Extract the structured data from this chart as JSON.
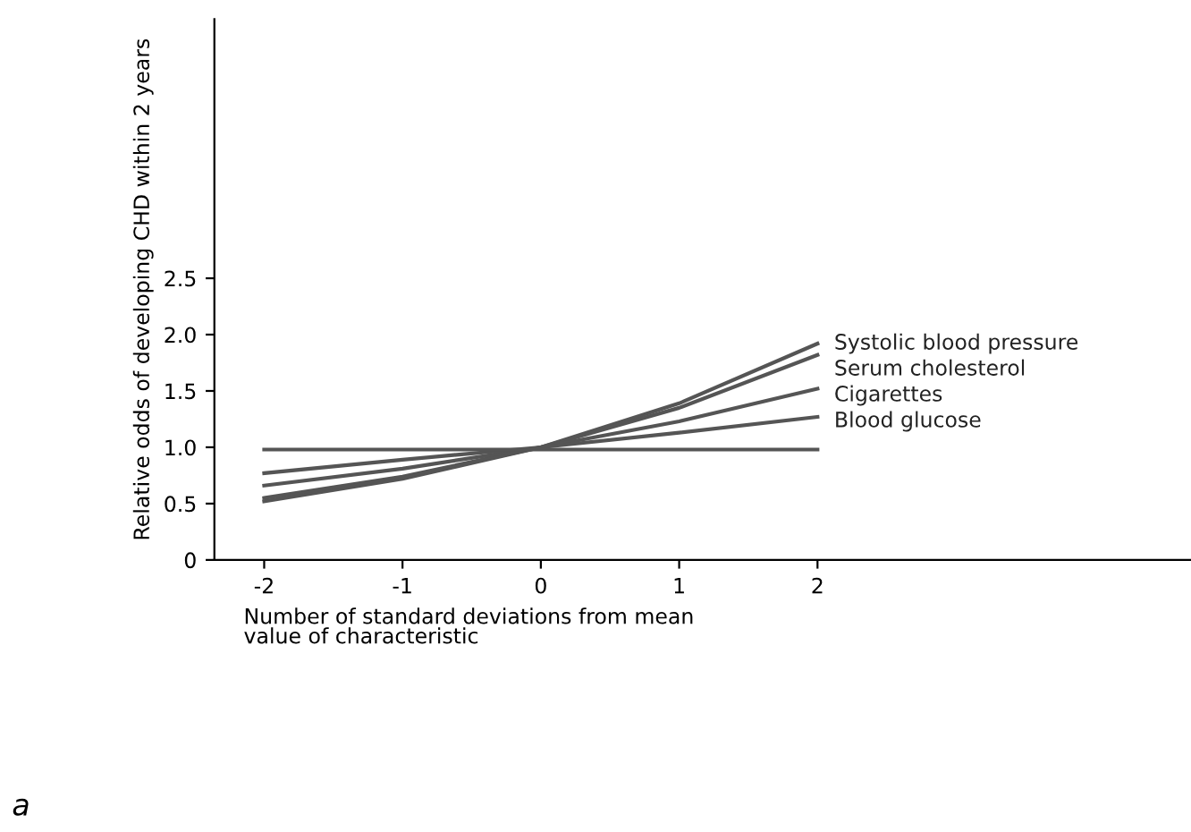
{
  "chart_data": {
    "type": "line",
    "xlabel": "Number of standard deviations from mean\nvalue of characteristic",
    "ylabel": "Relative odds of developing CHD within 2 years",
    "x": [
      -2,
      -1,
      0,
      1,
      2
    ],
    "series": [
      {
        "name": "Systolic blood pressure",
        "color": "#555555",
        "values": [
          0.52,
          0.72,
          1.0,
          1.39,
          1.92
        ]
      },
      {
        "name": "Serum cholesterol",
        "color": "#555555",
        "values": [
          0.55,
          0.74,
          1.0,
          1.35,
          1.82
        ]
      },
      {
        "name": "Cigarettes",
        "color": "#555555",
        "values": [
          0.66,
          0.81,
          1.0,
          1.23,
          1.52
        ]
      },
      {
        "name": "Blood glucose",
        "color": "#555555",
        "values": [
          0.77,
          0.89,
          1.0,
          1.13,
          1.27
        ]
      },
      {
        "color": "#555555",
        "values": [
          0.98,
          0.98,
          0.98,
          0.98,
          0.98
        ]
      }
    ],
    "xlim": [
      -2.36,
      4.7
    ],
    "ylim": [
      0,
      4.8
    ],
    "xticks": [
      -2,
      -1,
      0,
      1,
      2
    ],
    "yticks": [
      0,
      0.5,
      {
        "value": 1,
        "label": "1.0"
      },
      1.5,
      {
        "value": 2,
        "label": "2.0"
      },
      2.5
    ],
    "grid": false,
    "marker": "none",
    "line_style": "solid",
    "annotations": [
      "a"
    ]
  }
}
